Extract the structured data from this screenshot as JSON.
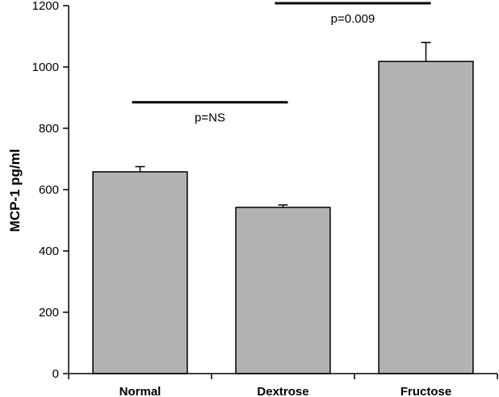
{
  "chart_data": {
    "type": "bar",
    "title": "",
    "xlabel": "",
    "ylabel": "MCP-1 pg/ml",
    "categories": [
      "Normal",
      "Dextrose",
      "Fructose"
    ],
    "values": [
      658,
      542,
      1018
    ],
    "errors": [
      17,
      8,
      62
    ],
    "ylim": [
      0,
      1200
    ],
    "yticks": [
      0,
      200,
      400,
      600,
      800,
      1000,
      1200
    ],
    "grid": false,
    "bar_color": "#b2b2b2",
    "annotations": [
      {
        "label": "p=NS",
        "from": "Normal",
        "to": "Dextrose",
        "y": 885
      },
      {
        "label": "p=0.009",
        "from": "Dextrose",
        "to": "Fructose",
        "y": 1208
      }
    ]
  }
}
